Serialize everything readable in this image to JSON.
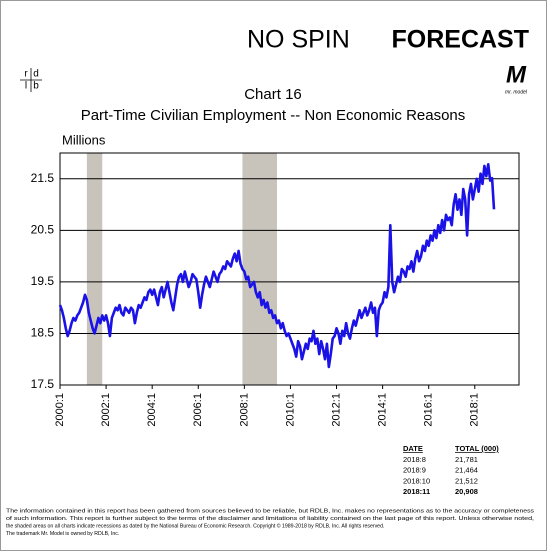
{
  "header": {
    "brand_left": "NO SPIN",
    "brand_right": "FORECAST",
    "logo_letters": [
      "r",
      "d",
      "l",
      "b"
    ],
    "model_logo": "M",
    "model_caption": "mr. model"
  },
  "chart_data": {
    "type": "line",
    "title": "Chart 16",
    "subtitle": "Part-Time Civilian Employment -- Non Economic Reasons",
    "y_label": "Millions",
    "categories": [
      "2000:1",
      null,
      null,
      null,
      null,
      null,
      null,
      null,
      null,
      null,
      null,
      null,
      null,
      null,
      null,
      null,
      null,
      null,
      null,
      null,
      null,
      null,
      null,
      null,
      "2002:1",
      null,
      null,
      null,
      null,
      null,
      null,
      null,
      null,
      null,
      null,
      null,
      null,
      null,
      null,
      null,
      null,
      null,
      null,
      null,
      null,
      null,
      null,
      null,
      "2004:1",
      null,
      null,
      null,
      null,
      null,
      null,
      null,
      null,
      null,
      null,
      null,
      null,
      null,
      null,
      null,
      null,
      null,
      null,
      null,
      null,
      null,
      null,
      null,
      "2006:1",
      null,
      null,
      null,
      null,
      null,
      null,
      null,
      null,
      null,
      null,
      null,
      null,
      null,
      null,
      null,
      null,
      null,
      null,
      null,
      null,
      null,
      null,
      null,
      "2008:1",
      null,
      null,
      null,
      null,
      null,
      null,
      null,
      null,
      null,
      null,
      null,
      null,
      null,
      null,
      null,
      null,
      null,
      null,
      null,
      null,
      null,
      null,
      null,
      "2010:1",
      null,
      null,
      null,
      null,
      null,
      null,
      null,
      null,
      null,
      null,
      null,
      null,
      null,
      null,
      null,
      null,
      null,
      null,
      null,
      null,
      null,
      null,
      null,
      "2012:1",
      null,
      null,
      null,
      null,
      null,
      null,
      null,
      null,
      null,
      null,
      null,
      null,
      null,
      null,
      null,
      null,
      null,
      null,
      null,
      null,
      null,
      null,
      null,
      "2014:1",
      null,
      null,
      null,
      null,
      null,
      null,
      null,
      null,
      null,
      null,
      null,
      null,
      null,
      null,
      null,
      null,
      null,
      null,
      null,
      null,
      null,
      null,
      null,
      "2016:1",
      null,
      null,
      null,
      null,
      null,
      null,
      null,
      null,
      null,
      null,
      null,
      null,
      null,
      null,
      null,
      null,
      null,
      null,
      null,
      null,
      null,
      null,
      null,
      "2018:1",
      null,
      null,
      null,
      null,
      null,
      null,
      null,
      null,
      null,
      null
    ],
    "values": [
      19.05,
      18.95,
      18.8,
      18.6,
      18.45,
      18.55,
      18.7,
      18.8,
      18.75,
      18.85,
      18.9,
      19.0,
      19.1,
      19.25,
      19.15,
      18.9,
      18.75,
      18.6,
      18.5,
      18.65,
      18.8,
      18.7,
      18.85,
      18.75,
      18.85,
      18.7,
      18.45,
      18.8,
      18.9,
      19.0,
      18.95,
      19.05,
      18.9,
      18.85,
      19.0,
      18.95,
      18.9,
      19.0,
      18.95,
      18.7,
      18.9,
      19.05,
      19.0,
      19.1,
      19.2,
      19.15,
      19.3,
      19.35,
      19.25,
      19.35,
      19.2,
      19.05,
      19.3,
      19.4,
      19.2,
      19.35,
      19.5,
      19.3,
      19.1,
      18.95,
      19.2,
      19.45,
      19.6,
      19.65,
      19.5,
      19.7,
      19.55,
      19.4,
      19.5,
      19.65,
      19.6,
      19.55,
      19.3,
      19.0,
      19.25,
      19.45,
      19.6,
      19.5,
      19.4,
      19.55,
      19.7,
      19.6,
      19.5,
      19.65,
      19.7,
      19.8,
      19.75,
      19.9,
      19.85,
      19.8,
      19.95,
      20.05,
      19.9,
      20.1,
      19.85,
      19.75,
      19.7,
      19.55,
      19.6,
      19.4,
      19.45,
      19.5,
      19.3,
      19.2,
      19.3,
      19.05,
      19.15,
      19.0,
      19.1,
      18.9,
      18.95,
      18.8,
      18.85,
      18.7,
      18.75,
      18.6,
      18.7,
      18.55,
      18.45,
      18.5,
      18.4,
      18.3,
      18.2,
      18.05,
      18.35,
      18.25,
      18.0,
      18.15,
      18.3,
      18.2,
      18.4,
      18.35,
      18.55,
      18.3,
      18.4,
      18.1,
      18.35,
      18.2,
      18.0,
      18.3,
      17.85,
      18.1,
      18.4,
      18.45,
      18.6,
      18.5,
      18.3,
      18.55,
      18.45,
      18.7,
      18.5,
      18.4,
      18.6,
      18.75,
      18.65,
      18.8,
      18.95,
      18.8,
      18.9,
      19.0,
      18.85,
      18.95,
      19.1,
      18.9,
      19.0,
      18.45,
      18.95,
      19.05,
      19.1,
      19.3,
      19.2,
      19.4,
      20.6,
      19.5,
      19.3,
      19.45,
      19.6,
      19.5,
      19.75,
      19.7,
      19.6,
      19.8,
      19.75,
      19.9,
      19.7,
      19.95,
      20.1,
      19.9,
      20.0,
      20.2,
      20.1,
      20.3,
      20.2,
      20.4,
      20.3,
      20.5,
      20.35,
      20.6,
      20.45,
      20.7,
      20.5,
      20.8,
      20.7,
      20.75,
      20.6,
      21.0,
      21.2,
      20.9,
      21.1,
      20.8,
      21.3,
      21.1,
      20.4,
      21.2,
      21.4,
      21.1,
      21.3,
      21.5,
      21.25,
      21.6,
      21.4,
      21.75,
      21.55,
      21.781,
      21.464,
      21.512,
      20.908
    ],
    "color": "#1a12e6",
    "ylim": [
      17.5,
      22
    ],
    "yticks": [
      17.5,
      18.5,
      19.5,
      20.5,
      21.5
    ],
    "grid": true,
    "recessions": [
      [
        "2001:3",
        "2001:11"
      ],
      [
        "2007:12",
        "2009:6"
      ]
    ],
    "recession_color": "#c8c4bc"
  },
  "table": {
    "header": [
      "DATE",
      "TOTAL (000)"
    ],
    "rows": [
      [
        "2018:8",
        "21,781"
      ],
      [
        "2018:9",
        "21,464"
      ],
      [
        "2018:10",
        "21,512"
      ],
      [
        "2018:11",
        "20,908"
      ]
    ]
  },
  "footer": {
    "lines": [
      "The information contained in this report has been gathered from sources believed to be reliable, but RDLB, Inc. makes no representations as to the accuracy or completeness",
      "of such information. This report is further subject to the terms of the disclaimer and limitations of liability contained on the last page of this report. Unless otherwise noted,",
      "the shaded areas on all charts indicate recessions as dated by the National Bureau of Economic Research. Copyright © 1989-2018 by RDLB, Inc. All rights reserved.",
      "The trademark Mr. Model is owned by RDLB, Inc."
    ]
  }
}
